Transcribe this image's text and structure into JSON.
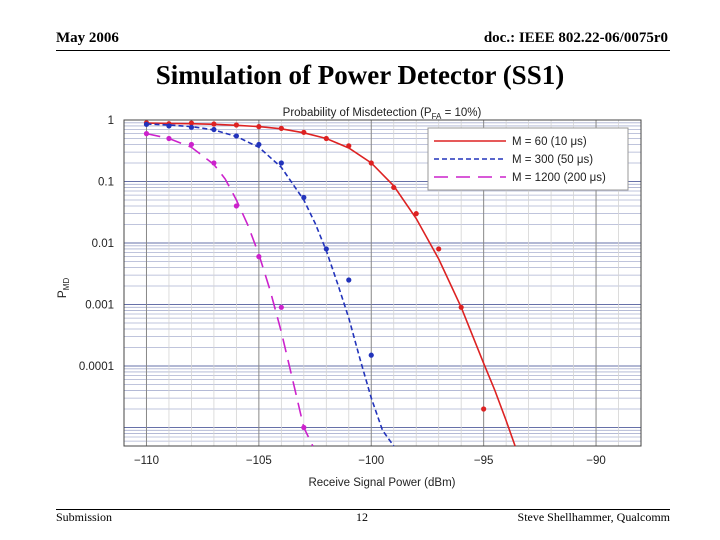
{
  "header": {
    "date": "May 2006",
    "doc_id": "doc.: IEEE 802.22-06/0075r0"
  },
  "slide_title": "Simulation of Power Detector (SS1)",
  "footer": {
    "left": "Submission",
    "page": "12",
    "author": "Steve Shellhammer, Qualcomm"
  },
  "chart_data": {
    "type": "line",
    "title": "Probability of Misdetection  (P",
    "title_sub": "FA",
    "title_tail": " = 10%)",
    "xlabel": "Receive Signal Power (dBm)",
    "ylabel": "P",
    "ylabel_sub": "MD",
    "y_scale": "log",
    "xlim": [
      -111,
      -88
    ],
    "ylim": [
      5e-06,
      1
    ],
    "x_ticks": [
      -110,
      -105,
      -100,
      -95,
      -90
    ],
    "x_tick_labels": [
      "−110",
      "−105",
      "−100",
      "−95",
      "−90"
    ],
    "y_ticks": [
      1,
      0.1,
      0.01,
      0.001,
      0.0001
    ],
    "y_tick_labels": [
      "1",
      "0.1",
      "0.01",
      "0.001",
      "0.0001"
    ],
    "grid": true,
    "legend_position": "top-right",
    "series": [
      {
        "name": "M = 60 (10 μs)",
        "color": "#dd2222",
        "dash": "solid",
        "curve_x": [
          -110,
          -109,
          -108,
          -107,
          -106,
          -105,
          -104,
          -103,
          -102,
          -101,
          -100,
          -99,
          -98,
          -97,
          -96,
          -95,
          -94.5,
          -94,
          -93.6
        ],
        "curve_y": [
          0.89,
          0.88,
          0.87,
          0.85,
          0.82,
          0.78,
          0.72,
          0.62,
          0.5,
          0.35,
          0.2,
          0.085,
          0.025,
          0.0055,
          0.0009,
          0.00011,
          4e-05,
          1.3e-05,
          5e-06
        ],
        "points_x": [
          -110,
          -109,
          -108,
          -107,
          -106,
          -105,
          -104,
          -103,
          -102,
          -101,
          -100,
          -99,
          -98,
          -97,
          -96,
          -95
        ],
        "points_y": [
          0.9,
          0.87,
          0.89,
          0.86,
          0.83,
          0.78,
          0.73,
          0.63,
          0.5,
          0.38,
          0.2,
          0.08,
          0.03,
          0.008,
          0.0009,
          2e-05
        ]
      },
      {
        "name": "M = 300 (50 μs)",
        "color": "#2233bb",
        "dash": "5,3",
        "curve_x": [
          -110,
          -109,
          -108,
          -107,
          -106,
          -105,
          -104,
          -103,
          -102.5,
          -102,
          -101.5,
          -101,
          -100.5,
          -100,
          -99.5,
          -99
        ],
        "curve_y": [
          0.86,
          0.83,
          0.78,
          0.69,
          0.54,
          0.36,
          0.17,
          0.05,
          0.021,
          0.0075,
          0.0022,
          0.0006,
          0.00013,
          3e-05,
          9e-06,
          3e-06
        ],
        "points_x": [
          -110,
          -109,
          -108,
          -107,
          -106,
          -105,
          -104,
          -103,
          -102,
          -101,
          -100
        ],
        "points_y": [
          0.85,
          0.8,
          0.76,
          0.7,
          0.55,
          0.4,
          0.2,
          0.055,
          0.008,
          0.0025,
          0.00015
        ]
      },
      {
        "name": "M = 1200 (200 μs)",
        "color": "#cc22cc",
        "dash": "14,8",
        "curve_x": [
          -110,
          -109,
          -108,
          -107,
          -106.5,
          -106,
          -105.5,
          -105,
          -104.5,
          -104,
          -103.5,
          -103,
          -102.6
        ],
        "curve_y": [
          0.6,
          0.5,
          0.36,
          0.19,
          0.11,
          0.05,
          0.02,
          0.0065,
          0.0017,
          0.00036,
          6e-05,
          1e-05,
          3e-06
        ],
        "points_x": [
          -110,
          -109,
          -108,
          -107,
          -106,
          -105,
          -104,
          -103
        ],
        "points_y": [
          0.6,
          0.5,
          0.4,
          0.2,
          0.04,
          0.006,
          0.0009,
          1e-05
        ]
      }
    ]
  }
}
